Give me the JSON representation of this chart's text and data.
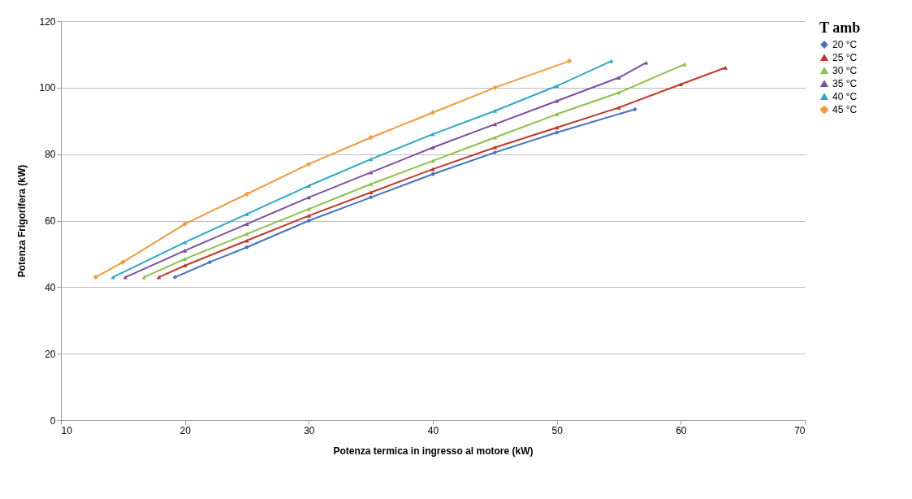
{
  "chart_data": {
    "type": "line",
    "xlabel": "Potenza termica in ingresso al motore (kW)",
    "ylabel": "Potenza Frigorifera (kW)",
    "legend_title": "T amb",
    "legend": "right",
    "grid": "y",
    "xlim": [
      10,
      70
    ],
    "xticks": [
      10,
      20,
      30,
      40,
      50,
      60,
      70
    ],
    "ylim": [
      0,
      120
    ],
    "yticks": [
      0,
      20,
      40,
      60,
      80,
      100,
      120
    ],
    "line_style": "solid",
    "series": [
      {
        "name": "20 °C",
        "color": "#4472c4",
        "marker": "diamond",
        "x": [
          19.2,
          22,
          25,
          30,
          35,
          40,
          45,
          50,
          56.3
        ],
        "values": [
          43,
          47.5,
          52,
          60,
          67,
          74,
          80.5,
          86.5,
          93.5
        ]
      },
      {
        "name": "25 °C",
        "color": "#c0392b",
        "marker": "triangle",
        "x": [
          17.9,
          20,
          25,
          30,
          35,
          40,
          45,
          50,
          55,
          60,
          63.6
        ],
        "values": [
          43,
          46.5,
          54,
          61.5,
          68.5,
          75.5,
          82,
          88,
          94,
          101,
          106
        ]
      },
      {
        "name": "30 °C",
        "color": "#8cc04a",
        "marker": "triangle",
        "x": [
          16.7,
          20,
          25,
          30,
          35,
          40,
          45,
          50,
          55,
          60.3
        ],
        "values": [
          43,
          48.5,
          56,
          63.5,
          71,
          78,
          85,
          92,
          98.5,
          107
        ]
      },
      {
        "name": "35 °C",
        "color": "#7b4fa0",
        "marker": "triangle",
        "x": [
          15.2,
          20,
          25,
          30,
          35,
          40,
          45,
          50,
          55,
          57.2
        ],
        "values": [
          43,
          51,
          59,
          67,
          74.5,
          82,
          89,
          96,
          103,
          107.5
        ]
      },
      {
        "name": "40 °C",
        "color": "#2fa8c8",
        "marker": "triangle",
        "x": [
          14.2,
          20,
          25,
          30,
          35,
          40,
          45,
          50,
          54.4
        ],
        "values": [
          43,
          53.5,
          62,
          70.5,
          78.5,
          86,
          93,
          100.5,
          108
        ]
      },
      {
        "name": "45 °C",
        "color": "#f29a3c",
        "marker": "cross",
        "x": [
          12.8,
          15,
          20,
          25,
          30,
          35,
          40,
          45,
          51
        ],
        "values": [
          43,
          47.5,
          59,
          68,
          77,
          85,
          92.5,
          100,
          108
        ]
      }
    ]
  }
}
